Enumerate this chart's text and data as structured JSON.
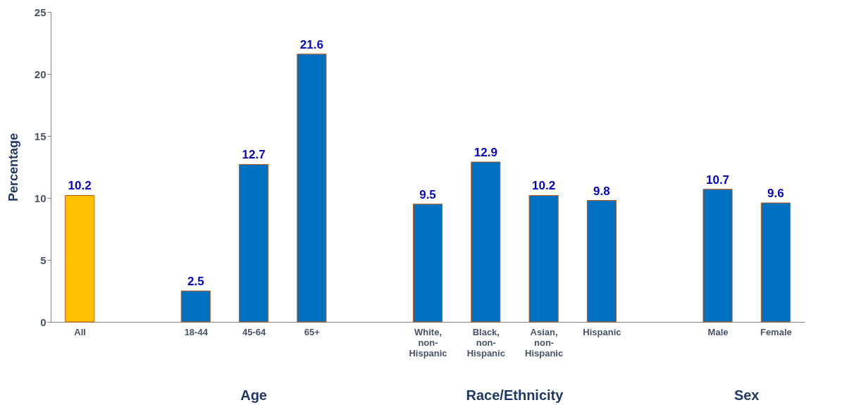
{
  "chart_data": {
    "type": "bar",
    "ylabel": "Percentage",
    "categories": [
      "All",
      null,
      "18-44",
      "45-64",
      "65+",
      null,
      "White,\nnon-\nHispanic",
      "Black,\nnon-\nHispanic",
      "Asian,\nnon-\nHispanic",
      "Hispanic",
      null,
      "Male",
      "Female"
    ],
    "values": [
      10.2,
      null,
      2.5,
      12.7,
      21.6,
      null,
      9.5,
      12.9,
      10.2,
      9.8,
      null,
      10.7,
      9.6
    ],
    "colors": [
      "#ffc000",
      null,
      "#0070c0",
      "#0070c0",
      "#0070c0",
      null,
      "#0070c0",
      "#0070c0",
      "#0070c0",
      "#0070c0",
      null,
      "#0070c0",
      "#0070c0"
    ],
    "ylim": [
      0,
      25
    ],
    "yticks": [
      0,
      5,
      10,
      15,
      20,
      25
    ],
    "data_labels": true,
    "grid": false,
    "annotations": [
      "Age",
      "Race/Ethnicity",
      "Sex"
    ]
  }
}
